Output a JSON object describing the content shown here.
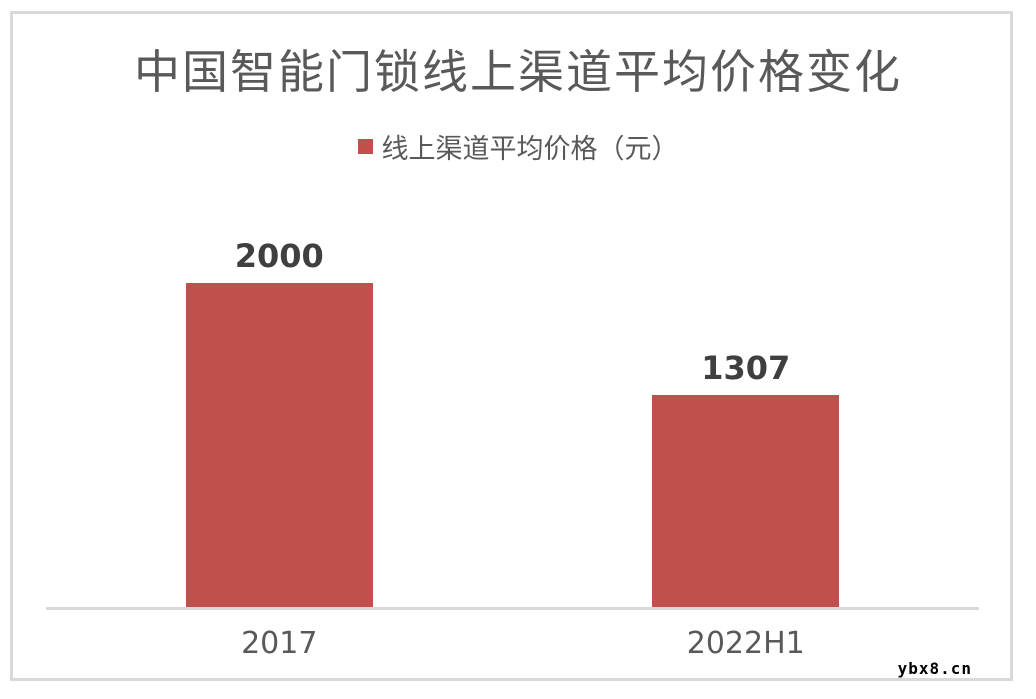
{
  "chart_data": {
    "type": "bar",
    "title": "中国智能门锁线上渠道平均价格变化",
    "categories": [
      "2017",
      "2022H1"
    ],
    "series": [
      {
        "name": "线上渠道平均价格（元）",
        "values": [
          2000,
          1307
        ]
      }
    ],
    "data_labels": [
      "2000",
      "1307"
    ],
    "xlabel": "",
    "ylabel": "",
    "value_axis_visible": false,
    "gridlines": false,
    "legend_position": "top-center",
    "bar_color": "#C0504D"
  },
  "colors": {
    "bar": "#C0504D",
    "border": "#D9D9D9",
    "axis_line": "#D9D9D9",
    "heading_text": "#595959",
    "value_label_text": "#3F3F3F",
    "watermark_text": "#000000"
  },
  "watermark": "ybx8.cn"
}
